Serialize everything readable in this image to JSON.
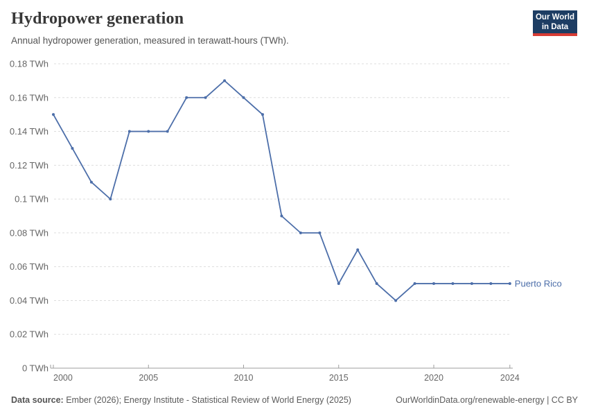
{
  "header": {
    "title": "Hydropower generation",
    "subtitle": "Annual hydropower generation, measured in terawatt-hours (TWh)."
  },
  "logo": {
    "line1": "Our World",
    "line2": "in Data",
    "bg_color": "#1d3d63",
    "accent_color": "#d73c34"
  },
  "footer": {
    "source_label": "Data source:",
    "source_text": " Ember (2026); Energy Institute - Statistical Review of World Energy (2025)",
    "link_text": "OurWorldinData.org/renewable-energy | CC BY"
  },
  "chart_data": {
    "type": "line",
    "title": "Hydropower generation",
    "unit": "TWh",
    "x": [
      2000,
      2001,
      2002,
      2003,
      2004,
      2005,
      2006,
      2007,
      2008,
      2009,
      2010,
      2011,
      2012,
      2013,
      2014,
      2015,
      2016,
      2017,
      2018,
      2019,
      2020,
      2021,
      2022,
      2023,
      2024
    ],
    "series": [
      {
        "name": "Puerto Rico",
        "color": "#4C6EA9",
        "values": [
          0.15,
          0.13,
          0.11,
          0.1,
          0.14,
          0.14,
          0.14,
          0.16,
          0.16,
          0.17,
          0.16,
          0.15,
          0.09,
          0.08,
          0.08,
          0.05,
          0.07,
          0.05,
          0.04,
          0.05,
          0.05,
          0.05,
          0.05,
          0.05,
          0.05
        ]
      }
    ],
    "ylim": [
      0,
      0.18
    ],
    "yticks": [
      0,
      0.02,
      0.04,
      0.06,
      0.08,
      0.1,
      0.12,
      0.14,
      0.16,
      0.18
    ],
    "ytick_suffix": " TWh",
    "xticks": [
      2000,
      2005,
      2010,
      2015,
      2020,
      2024
    ],
    "grid": "horizontal-dashed",
    "legend_position": "end-of-line",
    "colors": {
      "gridline": "#dddddd",
      "axis": "#9e9e9e",
      "tick_label": "#666666"
    }
  }
}
